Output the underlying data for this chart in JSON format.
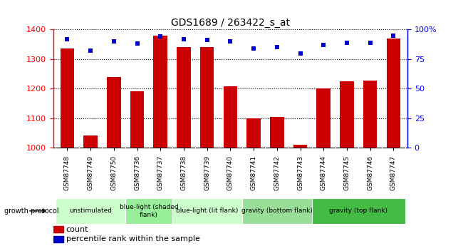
{
  "title": "GDS1689 / 263422_s_at",
  "samples": [
    "GSM87748",
    "GSM87749",
    "GSM87750",
    "GSM87736",
    "GSM87737",
    "GSM87738",
    "GSM87739",
    "GSM87740",
    "GSM87741",
    "GSM87742",
    "GSM87743",
    "GSM87744",
    "GSM87745",
    "GSM87746",
    "GSM87747"
  ],
  "counts": [
    1335,
    1040,
    1240,
    1192,
    1380,
    1340,
    1340,
    1207,
    1100,
    1105,
    1010,
    1200,
    1225,
    1228,
    1370
  ],
  "percentiles": [
    92,
    82,
    90,
    88,
    94,
    92,
    91,
    90,
    84,
    85,
    80,
    87,
    89,
    89,
    95
  ],
  "ylim_left": [
    1000,
    1400
  ],
  "ylim_right": [
    0,
    100
  ],
  "yticks_left": [
    1000,
    1100,
    1200,
    1300,
    1400
  ],
  "yticks_right": [
    0,
    25,
    50,
    75,
    100
  ],
  "bar_color": "#cc0000",
  "dot_color": "#0000cc",
  "groups": [
    {
      "label": "unstimulated",
      "start": 0,
      "end": 3,
      "color": "#ccffcc"
    },
    {
      "label": "blue-light (shaded\nflank)",
      "start": 3,
      "end": 5,
      "color": "#99ee99"
    },
    {
      "label": "blue-light (lit flank)",
      "start": 5,
      "end": 8,
      "color": "#ccffcc"
    },
    {
      "label": "gravity (bottom flank)",
      "start": 8,
      "end": 11,
      "color": "#99dd99"
    },
    {
      "label": "gravity (top flank)",
      "start": 11,
      "end": 15,
      "color": "#44bb44"
    }
  ],
  "xlabel_left": "count",
  "xlabel_right": "percentile rank within the sample",
  "growth_protocol_label": "growth protocol",
  "bar_base": 1000,
  "tick_bg_color": "#cccccc",
  "plot_bg": "#ffffff"
}
